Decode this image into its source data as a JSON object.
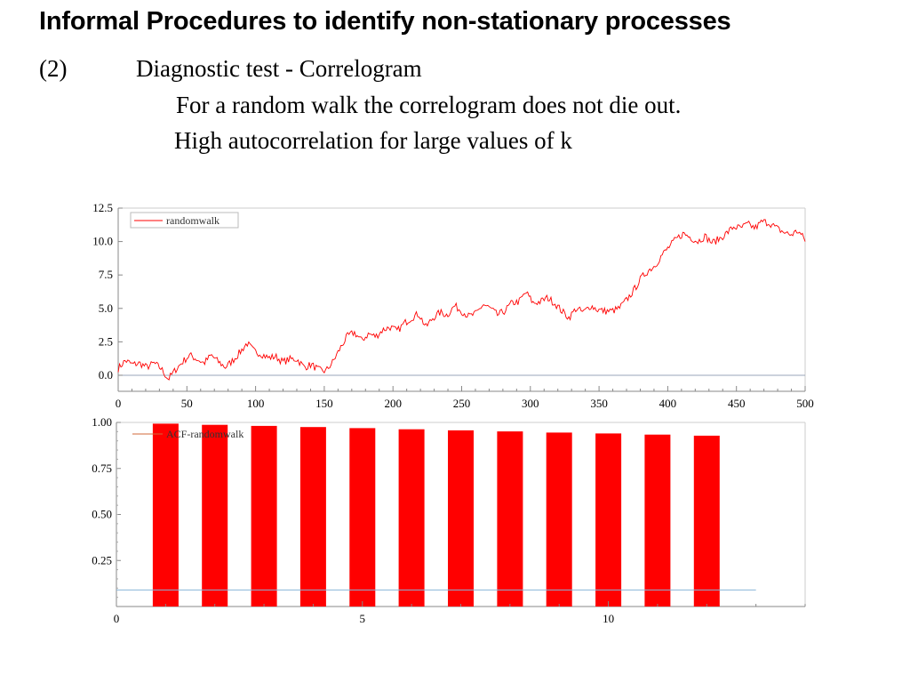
{
  "slide": {
    "title": "Informal Procedures to identify non-stationary processes",
    "number": "(2)",
    "heading": "Diagnostic test - Correlogram",
    "bullets": [
      "For a random walk the correlogram does not die out.",
      "High autocorrelation for large values of k"
    ]
  },
  "chart_data": [
    {
      "type": "line",
      "x_range": [
        0,
        500
      ],
      "xlim": [
        0,
        500
      ],
      "ylim": [
        -1.2,
        12.5
      ],
      "x_ticks": [
        "0",
        "50",
        "100",
        "150",
        "200",
        "250",
        "300",
        "350",
        "400",
        "450",
        "500"
      ],
      "y_ticks": [
        "0.0",
        "2.5",
        "5.0",
        "7.5",
        "10.0",
        "12.5"
      ],
      "legend_placement": "top-left",
      "grid": false,
      "baseline": 0,
      "series": [
        {
          "name": "randomwalk",
          "color": "#ff0000",
          "values": [
            0.5,
            1.1,
            0.8,
            0.9,
            0.6,
            0.9,
            0.5,
            -0.3,
            0.4,
            1.0,
            1.5,
            1.2,
            0.9,
            1.5,
            1.0,
            0.6,
            1.1,
            1.7,
            2.4,
            1.8,
            1.6,
            1.3,
            1.4,
            1.0,
            1.2,
            1.2,
            0.6,
            0.8,
            0.4,
            0.3,
            1.0,
            2.0,
            2.9,
            3.2,
            2.6,
            3.1,
            2.9,
            3.4,
            3.6,
            3.3,
            3.9,
            4.3,
            4.6,
            3.6,
            4.3,
            4.7,
            4.5,
            5.2,
            4.8,
            4.4,
            4.6,
            5.3,
            5.0,
            4.5,
            4.8,
            5.4,
            5.5,
            6.2,
            5.4,
            5.5,
            5.8,
            5.4,
            4.8,
            4.3,
            5.0,
            4.7,
            5.2,
            4.9,
            4.8,
            4.8,
            5.0,
            5.6,
            6.3,
            7.2,
            7.8,
            8.2,
            9.0,
            9.6,
            10.2,
            10.6,
            10.3,
            10.0,
            10.4,
            9.9,
            10.2,
            10.6,
            11.1,
            11.0,
            11.3,
            11.0,
            11.5,
            11.4,
            11.0,
            10.7,
            10.5,
            10.8,
            10.1
          ]
        }
      ]
    },
    {
      "type": "bar",
      "xlim": [
        0,
        14
      ],
      "ylim": [
        0,
        1.0
      ],
      "x_ticks": [
        "0",
        "5",
        "10"
      ],
      "y_ticks": [
        "0.25",
        "0.50",
        "0.75",
        "1.00"
      ],
      "legend_placement": "top-left",
      "grid": false,
      "categories": [
        1,
        2,
        3,
        4,
        5,
        6,
        7,
        8,
        9,
        10,
        11,
        12
      ],
      "confidence_line": 0.09,
      "series": [
        {
          "name": "ACF-randomwalk",
          "color": "#ff0000",
          "values": [
            0.993,
            0.987,
            0.981,
            0.975,
            0.969,
            0.963,
            0.957,
            0.951,
            0.945,
            0.94,
            0.934,
            0.928
          ]
        }
      ]
    }
  ]
}
